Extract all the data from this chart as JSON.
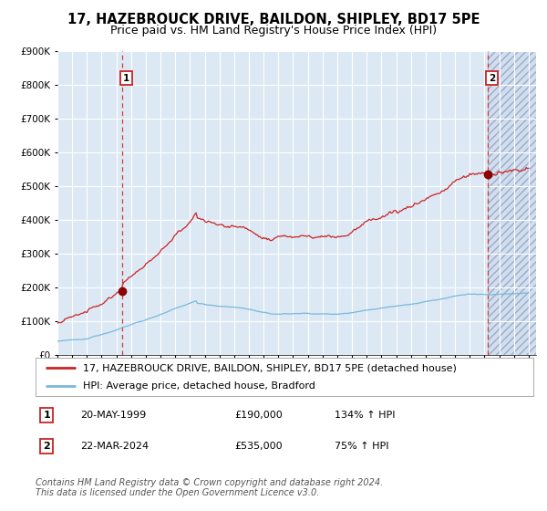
{
  "title": "17, HAZEBROUCK DRIVE, BAILDON, SHIPLEY, BD17 5PE",
  "subtitle": "Price paid vs. HM Land Registry's House Price Index (HPI)",
  "legend_line1": "17, HAZEBROUCK DRIVE, BAILDON, SHIPLEY, BD17 5PE (detached house)",
  "legend_line2": "HPI: Average price, detached house, Bradford",
  "transaction1_label": "1",
  "transaction1_date": "20-MAY-1999",
  "transaction1_price": 190000,
  "transaction1_pct": "134% ↑ HPI",
  "transaction2_label": "2",
  "transaction2_date": "22-MAR-2024",
  "transaction2_price": 535000,
  "transaction2_pct": "75% ↑ HPI",
  "footnote": "Contains HM Land Registry data © Crown copyright and database right 2024.\nThis data is licensed under the Open Government Licence v3.0.",
  "hpi_color": "#7ab8d9",
  "property_color": "#cc2222",
  "marker_color": "#8b0000",
  "vline_color": "#dd3333",
  "background_color": "#dce9f5",
  "grid_color": "#ffffff",
  "ylim": [
    0,
    900000
  ],
  "xlim_start": 1995.0,
  "xlim_end": 2027.5,
  "transaction1_x": 1999.37,
  "transaction2_x": 2024.21,
  "title_fontsize": 10.5,
  "subtitle_fontsize": 9,
  "axis_fontsize": 7.5,
  "legend_fontsize": 8,
  "table_fontsize": 8,
  "footnote_fontsize": 7
}
